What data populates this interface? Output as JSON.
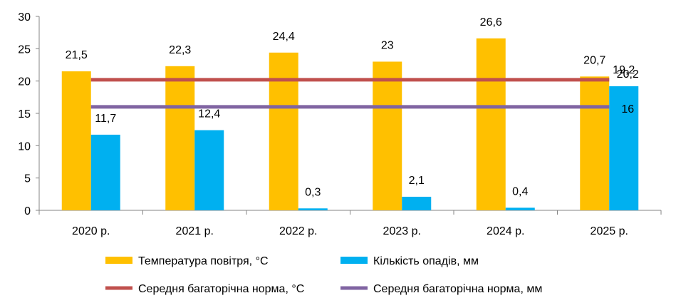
{
  "chart_data": {
    "type": "bar",
    "categories": [
      "2020 р.",
      "2021 р.",
      "2022 р.",
      "2023 р.",
      "2024 р.",
      "2025 р."
    ],
    "series": [
      {
        "name": "Температура повітря, °С",
        "kind": "bar",
        "color": "#FFC000",
        "values": [
          21.5,
          22.3,
          24.4,
          23,
          26.6,
          20.7
        ],
        "labels": [
          "21,5",
          "22,3",
          "24,4",
          "23",
          "26,6",
          "20,7"
        ]
      },
      {
        "name": "Кількість опадів, мм",
        "kind": "bar",
        "color": "#00B0F0",
        "values": [
          11.7,
          12.4,
          0.3,
          2.1,
          0.4,
          19.2
        ],
        "labels": [
          "11,7",
          "12,4",
          "0,3",
          "2,1",
          "0,4",
          "19,2"
        ]
      },
      {
        "name": "Середня багаторічна норма, °С",
        "kind": "line",
        "color": "#C0504D",
        "value": 20.2,
        "label": "20,2"
      },
      {
        "name": "Середня багаторічна норма, мм",
        "kind": "line",
        "color": "#8064A2",
        "value": 16,
        "label": "16"
      }
    ],
    "ylim": [
      0,
      30
    ],
    "yticks": [
      "0",
      "5",
      "10",
      "15",
      "20",
      "25",
      "30"
    ],
    "grid": false,
    "legend_position": "bottom"
  }
}
